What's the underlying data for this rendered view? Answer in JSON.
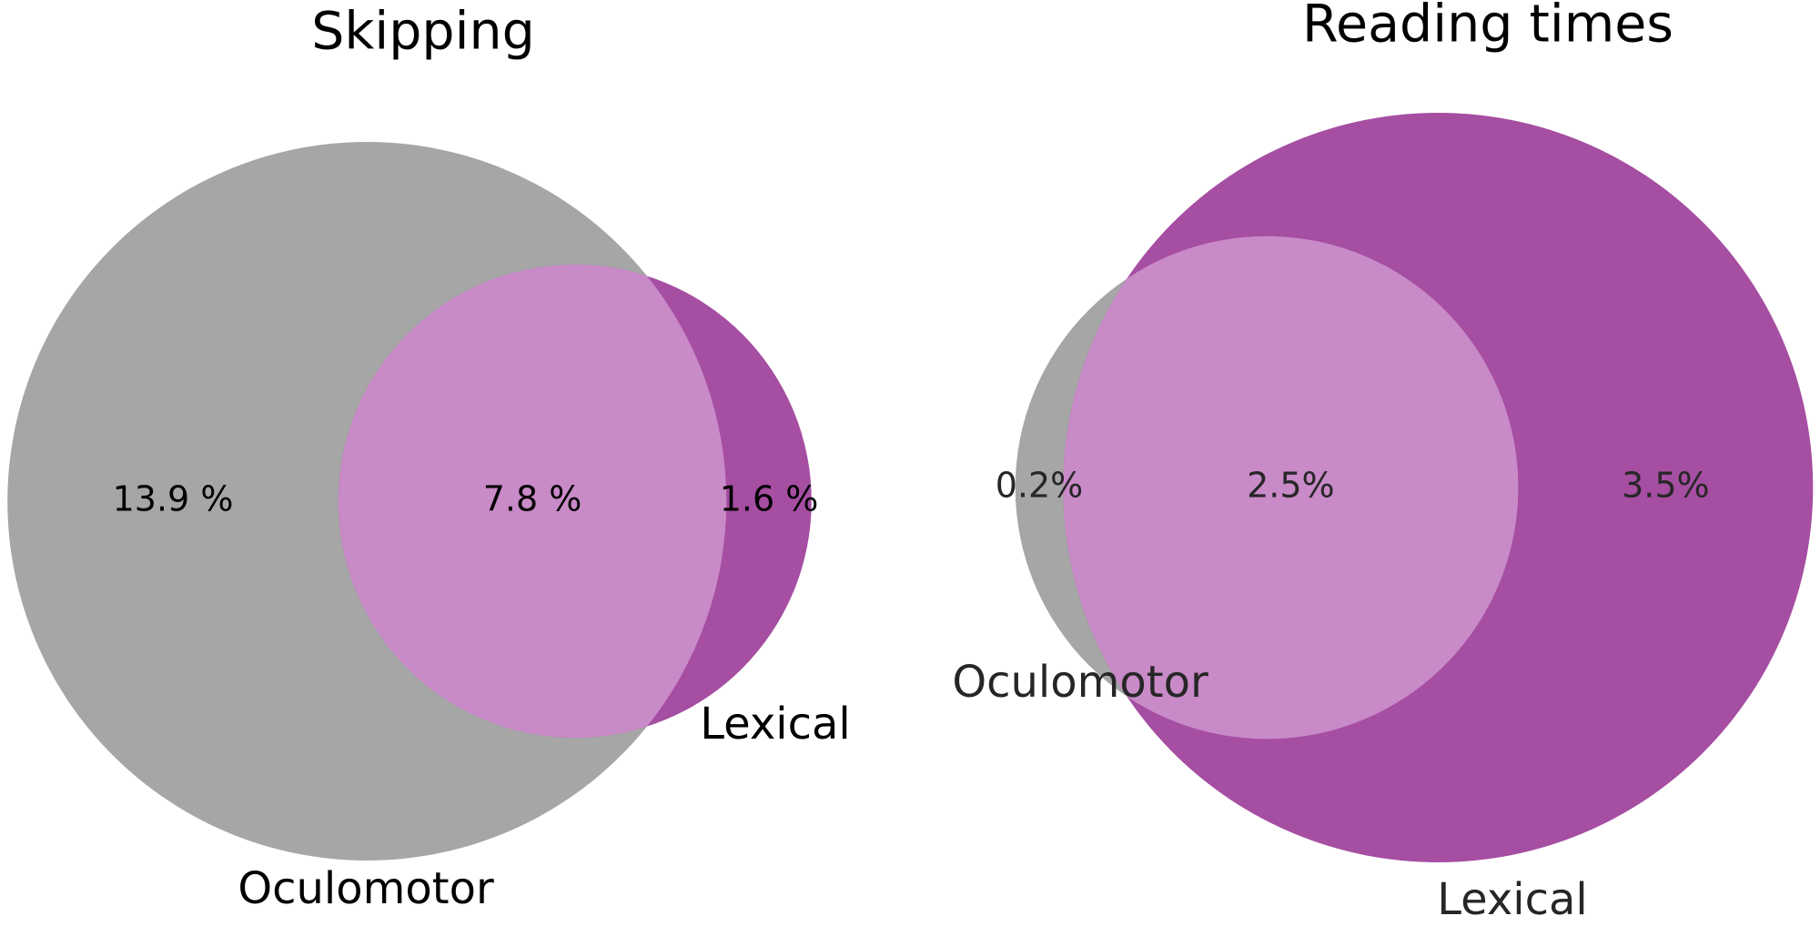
{
  "chart_data": [
    {
      "type": "venn",
      "title": "Skipping",
      "sets": [
        {
          "name": "Oculomotor",
          "color": "#a6a6a6"
        },
        {
          "name": "Lexical",
          "color": "#a54ea2"
        }
      ],
      "overlap_color": "#c98ac8",
      "values": [
        13.9,
        7.8,
        1.6
      ],
      "value_labels": [
        "13.9 %",
        "7.8 %",
        "1.6 %"
      ]
    },
    {
      "type": "venn",
      "title": "Reading times",
      "sets": [
        {
          "name": "Oculomotor",
          "color": "#a6a6a6"
        },
        {
          "name": "Lexical",
          "color": "#a54ea2"
        }
      ],
      "overlap_color": "#c98ac8",
      "values": [
        0.2,
        2.5,
        3.5
      ],
      "value_labels": [
        "0.2%",
        "2.5%",
        "3.5%"
      ]
    }
  ]
}
